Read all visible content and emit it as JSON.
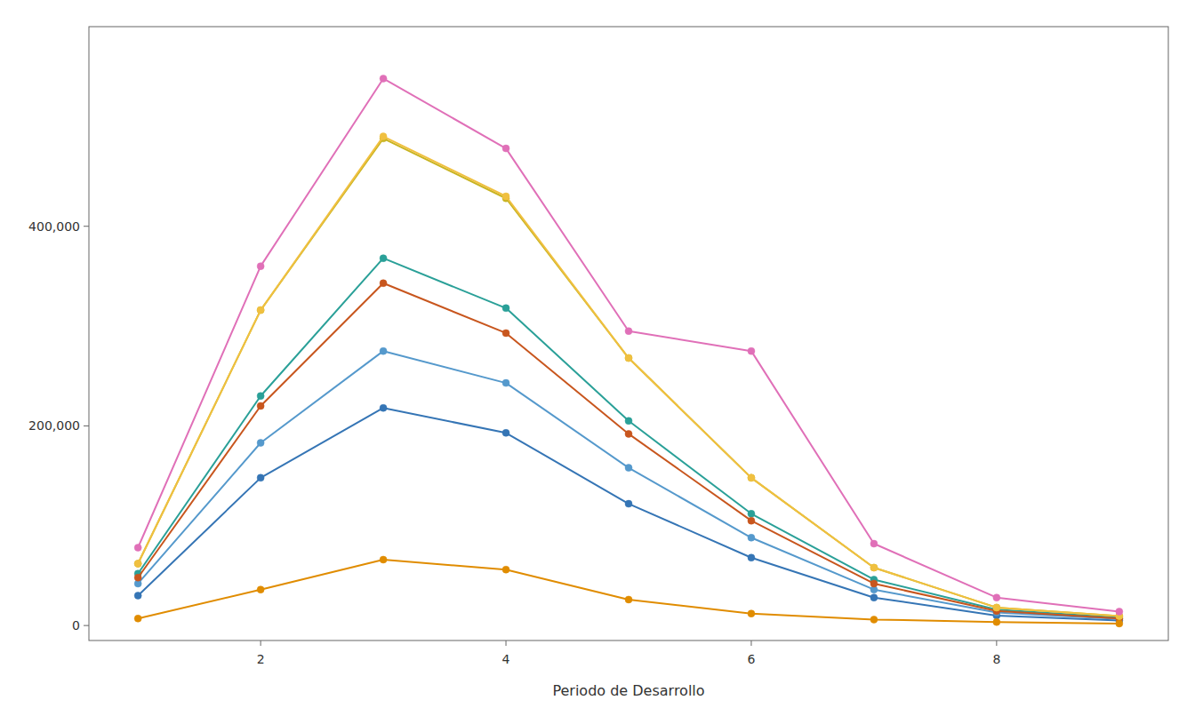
{
  "chart_data": {
    "type": "line",
    "xlabel": "Periodo de Desarrollo",
    "x": [
      1,
      2,
      3,
      4,
      5,
      6,
      7,
      8,
      9
    ],
    "xlim": [
      0.6,
      9.4
    ],
    "xticks": [
      2,
      4,
      6,
      8
    ],
    "ylim": [
      -15000,
      600000
    ],
    "yticks": [
      0,
      {
        "value": 200000,
        "label": "200,000"
      },
      {
        "value": 400000,
        "label": "400,000"
      }
    ],
    "grid": false,
    "marker": "circle",
    "series": [
      {
        "color": "#3575b5",
        "values": [
          30000,
          148000,
          218000,
          193000,
          122000,
          68000,
          28000,
          10000,
          5000
        ]
      },
      {
        "color": "#5599cc",
        "values": [
          42000,
          183000,
          275000,
          243000,
          158000,
          88000,
          36000,
          13000,
          6500
        ]
      },
      {
        "color": "#2aa098",
        "values": [
          52000,
          230000,
          368000,
          318000,
          205000,
          112000,
          46000,
          16000,
          8000
        ]
      },
      {
        "color": "#c8561e",
        "values": [
          48000,
          220000,
          343000,
          293000,
          192000,
          105000,
          42000,
          14500,
          7000
        ]
      },
      {
        "color": "#c8b422",
        "values": [
          62000,
          316000,
          488000,
          428000,
          268000,
          148000,
          58000,
          18000,
          9500
        ]
      },
      {
        "color": "#e08c00",
        "values": [
          7000,
          36000,
          66000,
          56000,
          26000,
          12000,
          6000,
          3500,
          2000
        ]
      },
      {
        "color": "#f0c040",
        "values": [
          62000,
          316000,
          490000,
          430000,
          268000,
          148000,
          58000,
          18000,
          9500
        ]
      },
      {
        "color": "#e070b8",
        "values": [
          78000,
          360000,
          548000,
          478000,
          295000,
          275000,
          82000,
          28000,
          14000
        ]
      }
    ]
  }
}
